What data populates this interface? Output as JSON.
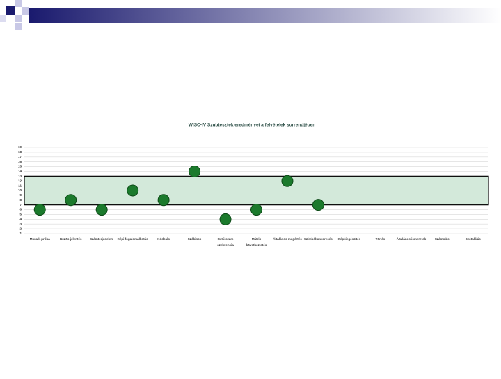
{
  "chart_data": {
    "type": "scatter",
    "title": "WISC-IV Szubtesztek eredményei a felvételek sorrendjében",
    "categories": [
      "Mozaik-próba",
      "Közös jelentés",
      "Számterjedelem",
      "Képi fogalomalkotás",
      "Kódolás",
      "Szókincs",
      "Betű-szám\nszekvencia",
      "Mátrix\nkövetkeztetés",
      "Általános megértés",
      "Szimbólumkeresés",
      "Képkiegészítés",
      "Törlés",
      "Általános ismeretek",
      "Számolás",
      "Szótalálás"
    ],
    "values": [
      6,
      8,
      6,
      10,
      8,
      14,
      4,
      6,
      12,
      7,
      null,
      null,
      null,
      null,
      null
    ],
    "color": "#1b7a2c",
    "band": [
      7,
      13
    ],
    "band_color": "#d3e9da",
    "ylim": [
      1,
      19
    ],
    "yticks": [
      1,
      2,
      3,
      4,
      5,
      6,
      7,
      8,
      9,
      10,
      11,
      12,
      13,
      14,
      15,
      16,
      17,
      18,
      19
    ],
    "grid": true
  }
}
